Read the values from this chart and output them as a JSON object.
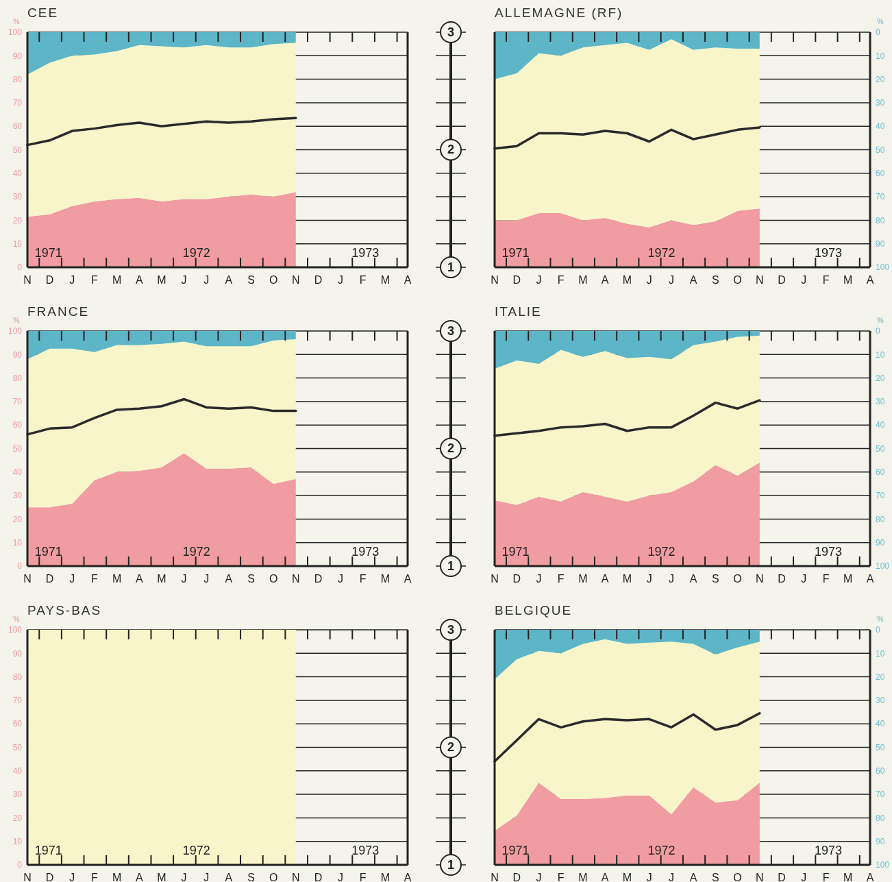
{
  "chart_data": [
    {
      "type": "area",
      "stacked": true,
      "title": "CEE",
      "ylabel": "%",
      "categories": [
        "N",
        "D",
        "J",
        "F",
        "M",
        "A",
        "M",
        "J",
        "J",
        "A",
        "S",
        "O",
        "N",
        "D",
        "J",
        "F",
        "M",
        "A"
      ],
      "ylim": [
        0,
        100
      ],
      "yticks": [
        0,
        10,
        20,
        30,
        40,
        50,
        60,
        70,
        80,
        90,
        100
      ],
      "grid": "y",
      "series": [
        {
          "color": "#f09ca0",
          "values": [
            21.5,
            22.5,
            26,
            28,
            29,
            29.5,
            28,
            29,
            29,
            30,
            31,
            30,
            32,
            null,
            null,
            null,
            null,
            null
          ]
        },
        {
          "color": "#f7f5c9",
          "values": [
            60.5,
            64.5,
            64,
            62.5,
            63,
            65,
            66,
            64.5,
            65.5,
            63.5,
            62.5,
            65,
            63.5,
            null,
            null,
            null,
            null,
            null
          ]
        },
        {
          "color": "#5cb6c8",
          "values": [
            18,
            13,
            10,
            9.5,
            8,
            5.5,
            6,
            6.5,
            5.5,
            6.5,
            6.5,
            5,
            4.5,
            null,
            null,
            null,
            null,
            null
          ]
        },
        {
          "type": "line",
          "color": "#2b2b2b",
          "line_style": "solid",
          "values": [
            52,
            54,
            58,
            59,
            60.5,
            61.5,
            60,
            61,
            62,
            61.5,
            62,
            63,
            63.5,
            null,
            null,
            null,
            null,
            null
          ]
        }
      ],
      "annotations": [
        "1971",
        "1972",
        "1973",
        "3",
        "2",
        "1"
      ]
    },
    {
      "type": "area",
      "stacked": true,
      "title": "ALLEMAGNE (RF)",
      "y2label": "%",
      "categories": [
        "N",
        "D",
        "J",
        "F",
        "M",
        "A",
        "M",
        "J",
        "J",
        "A",
        "S",
        "O",
        "N",
        "D",
        "J",
        "F",
        "M",
        "A"
      ],
      "ylim": [
        0,
        100
      ],
      "y2lim": [
        100,
        0
      ],
      "y2ticks": [
        0,
        10,
        20,
        30,
        40,
        50,
        60,
        70,
        80,
        90,
        100
      ],
      "grid": "y",
      "series": [
        {
          "color": "#f09ca0",
          "values": [
            20,
            20,
            23,
            23,
            20,
            21,
            18.5,
            17,
            20,
            18,
            19.5,
            24,
            25,
            null,
            null,
            null,
            null,
            null
          ]
        },
        {
          "color": "#f7f5c9",
          "values": [
            60,
            62.5,
            68,
            67,
            73.5,
            73.5,
            77,
            75.5,
            77,
            74.5,
            74,
            69,
            68,
            null,
            null,
            null,
            null,
            null
          ]
        },
        {
          "color": "#5cb6c8",
          "values": [
            20,
            17.5,
            9,
            10,
            6.5,
            5.5,
            4.5,
            7.5,
            3,
            7.5,
            6.5,
            7,
            7,
            null,
            null,
            null,
            null,
            null
          ]
        },
        {
          "type": "line",
          "color": "#2b2b2b",
          "line_style": "solid",
          "values": [
            50.5,
            51.5,
            57,
            57,
            56.5,
            58,
            57,
            53.5,
            58.5,
            54.5,
            56.5,
            58.5,
            59.5,
            null,
            null,
            null,
            null,
            null
          ]
        }
      ],
      "annotations": [
        "1971",
        "1972",
        "1973"
      ]
    },
    {
      "type": "area",
      "stacked": true,
      "title": "FRANCE",
      "ylabel": "%",
      "categories": [
        "N",
        "D",
        "J",
        "F",
        "M",
        "A",
        "M",
        "J",
        "J",
        "A",
        "S",
        "O",
        "N",
        "D",
        "J",
        "F",
        "M",
        "A"
      ],
      "ylim": [
        0,
        100
      ],
      "yticks": [
        0,
        10,
        20,
        30,
        40,
        50,
        60,
        70,
        80,
        90,
        100
      ],
      "grid": "y",
      "series": [
        {
          "color": "#f09ca0",
          "values": [
            25,
            25,
            26.5,
            36.5,
            40,
            40.5,
            42,
            48,
            41.5,
            41.5,
            42,
            35,
            37,
            null,
            null,
            null,
            null,
            null
          ]
        },
        {
          "color": "#f7f5c9",
          "values": [
            63,
            67.5,
            66,
            54.5,
            54,
            53.5,
            52.5,
            47.5,
            52,
            52,
            51.5,
            61,
            59.5,
            null,
            null,
            null,
            null,
            null
          ]
        },
        {
          "color": "#5cb6c8",
          "values": [
            12,
            7.5,
            7.5,
            9,
            6,
            6,
            5.5,
            4.5,
            6.5,
            6.5,
            6.5,
            4,
            3.5,
            null,
            null,
            null,
            null,
            null
          ]
        },
        {
          "type": "line",
          "color": "#2b2b2b",
          "line_style": "solid",
          "values": [
            56,
            58.5,
            59,
            63,
            66.5,
            67,
            68,
            71,
            67.5,
            67,
            67.5,
            66,
            66,
            null,
            null,
            null,
            null,
            null
          ]
        }
      ],
      "annotations": [
        "1971",
        "1972",
        "1973",
        "3",
        "2",
        "1"
      ]
    },
    {
      "type": "area",
      "stacked": true,
      "title": "ITALIE",
      "y2label": "%",
      "categories": [
        "N",
        "D",
        "J",
        "F",
        "M",
        "A",
        "M",
        "J",
        "J",
        "A",
        "S",
        "O",
        "N",
        "D",
        "J",
        "F",
        "M",
        "A"
      ],
      "ylim": [
        0,
        100
      ],
      "y2lim": [
        100,
        0
      ],
      "y2ticks": [
        0,
        10,
        20,
        30,
        40,
        50,
        60,
        70,
        80,
        90,
        100
      ],
      "grid": "y",
      "series": [
        {
          "color": "#f09ca0",
          "values": [
            28,
            26,
            29.5,
            27.5,
            31.5,
            29.5,
            27.5,
            30,
            31.5,
            36,
            43,
            38.5,
            44,
            null,
            null,
            null,
            null,
            null
          ]
        },
        {
          "color": "#f7f5c9",
          "values": [
            56,
            61.5,
            56.5,
            64.5,
            57.5,
            62,
            61,
            59,
            56.5,
            58,
            52.5,
            59,
            54,
            null,
            null,
            null,
            null,
            null
          ]
        },
        {
          "color": "#5cb6c8",
          "values": [
            16,
            12.5,
            14,
            8,
            11,
            8.5,
            11.5,
            11,
            12,
            6,
            4.5,
            2.5,
            2,
            null,
            null,
            null,
            null,
            null
          ]
        },
        {
          "type": "line",
          "color": "#2b2b2b",
          "line_style": "solid",
          "values": [
            55.5,
            56.5,
            57.5,
            59,
            59.5,
            60.5,
            57.5,
            59,
            59,
            64,
            69.5,
            67,
            70.5,
            null,
            null,
            null,
            null,
            null
          ]
        }
      ],
      "annotations": [
        "1971",
        "1972",
        "1973"
      ]
    },
    {
      "type": "area",
      "stacked": true,
      "title": "PAYS-BAS",
      "ylabel": "%",
      "categories": [
        "N",
        "D",
        "J",
        "F",
        "M",
        "A",
        "M",
        "J",
        "J",
        "A",
        "S",
        "O",
        "N",
        "D",
        "J",
        "F",
        "M",
        "A"
      ],
      "ylim": [
        0,
        100
      ],
      "yticks": [
        0,
        10,
        20,
        30,
        40,
        50,
        60,
        70,
        80,
        90,
        100
      ],
      "grid": "y",
      "series": [
        {
          "color": "#f7f5c9",
          "values": [
            100,
            100,
            100,
            100,
            100,
            100,
            100,
            100,
            100,
            100,
            100,
            100,
            100,
            null,
            null,
            null,
            null,
            null
          ]
        }
      ],
      "annotations": [
        "1971",
        "1972",
        "1973",
        "3",
        "2",
        "1"
      ]
    },
    {
      "type": "area",
      "stacked": true,
      "title": "BELGIQUE",
      "y2label": "%",
      "categories": [
        "N",
        "D",
        "J",
        "F",
        "M",
        "A",
        "M",
        "J",
        "J",
        "A",
        "S",
        "O",
        "N",
        "D",
        "J",
        "F",
        "M",
        "A"
      ],
      "ylim": [
        0,
        100
      ],
      "y2lim": [
        100,
        0
      ],
      "y2ticks": [
        0,
        10,
        20,
        30,
        40,
        50,
        60,
        70,
        80,
        90,
        100
      ],
      "grid": "y",
      "series": [
        {
          "color": "#f09ca0",
          "values": [
            14.5,
            21,
            35,
            28,
            28,
            28.5,
            29.5,
            29.5,
            21.5,
            33,
            26.5,
            27.5,
            35,
            null,
            null,
            null,
            null,
            null
          ]
        },
        {
          "color": "#f7f5c9",
          "values": [
            64.5,
            66.5,
            56,
            62,
            66,
            67.5,
            64.5,
            65,
            73.5,
            61,
            63,
            65,
            60,
            null,
            null,
            null,
            null,
            null
          ]
        },
        {
          "color": "#5cb6c8",
          "values": [
            21,
            12.5,
            9,
            10,
            6,
            4,
            6,
            5.5,
            5,
            6,
            10.5,
            7.5,
            5,
            null,
            null,
            null,
            null,
            null
          ]
        },
        {
          "type": "line",
          "color": "#2b2b2b",
          "line_style": "solid",
          "values": [
            44,
            53,
            62,
            58.5,
            61,
            62,
            61.5,
            62,
            58.5,
            64,
            57.5,
            59.5,
            64.5,
            null,
            null,
            null,
            null,
            null
          ]
        }
      ],
      "annotations": [
        "1971",
        "1972",
        "1973"
      ]
    }
  ]
}
